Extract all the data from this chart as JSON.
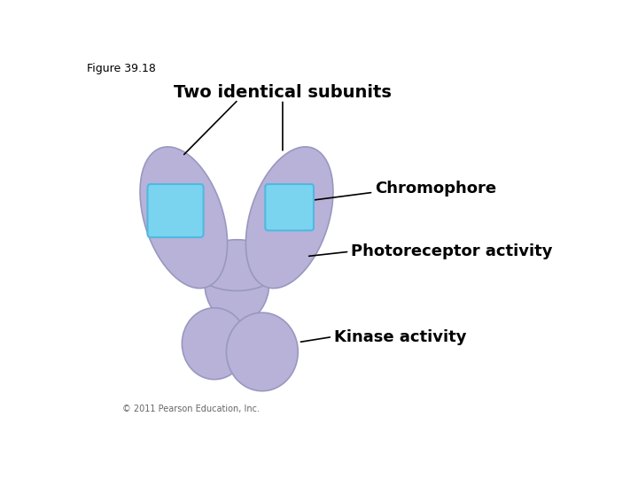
{
  "figure_label": "Figure 39.18",
  "title": "Two identical subunits",
  "labels": {
    "chromophore": "Chromophore",
    "photoreceptor": "Photoreceptor activity",
    "kinase": "Kinase activity"
  },
  "colors": {
    "background": "#ffffff",
    "protein_fill": "#b8b2d8",
    "protein_edge": "#9898c0",
    "chromophore_fill": "#7ad4f0",
    "chromophore_edge": "#50b8e0",
    "text_color": "#000000",
    "copyright": "#666666"
  },
  "copyright": "© 2011 Pearson Education, Inc.",
  "font_sizes": {
    "figure_label": 9,
    "title": 14,
    "label": 13,
    "copyright": 7
  }
}
